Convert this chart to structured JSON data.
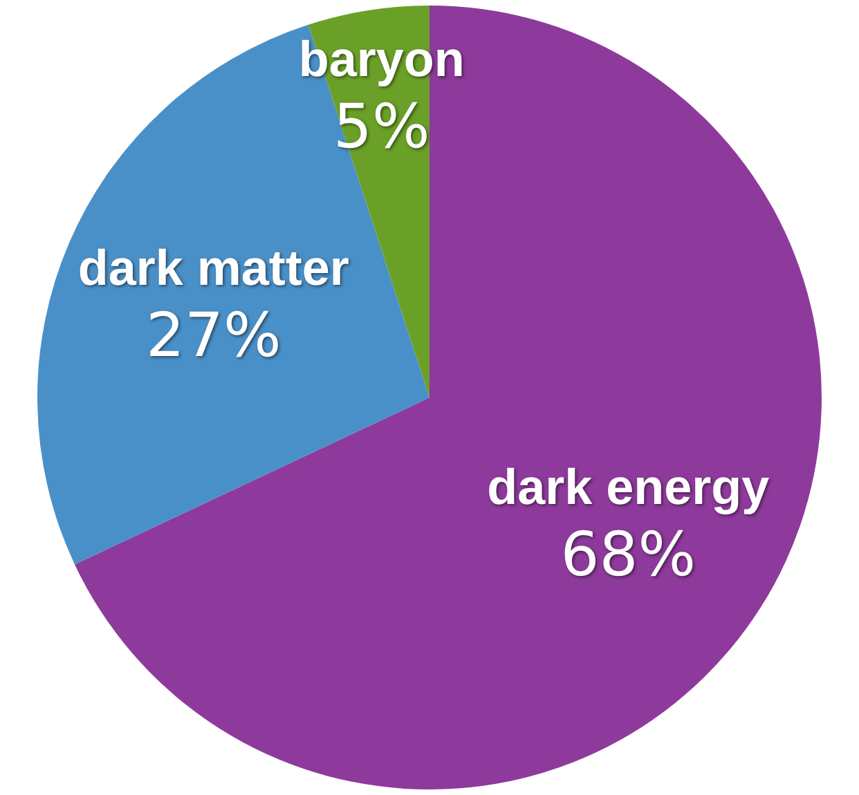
{
  "chart_data": {
    "type": "pie",
    "categories": [
      "dark energy",
      "dark matter",
      "baryon"
    ],
    "values": [
      68,
      27,
      5
    ],
    "colors": [
      "#8e3a9c",
      "#4a90c8",
      "#6aa028"
    ],
    "value_labels": [
      "68%",
      "27%",
      "5%"
    ],
    "legend": false
  }
}
